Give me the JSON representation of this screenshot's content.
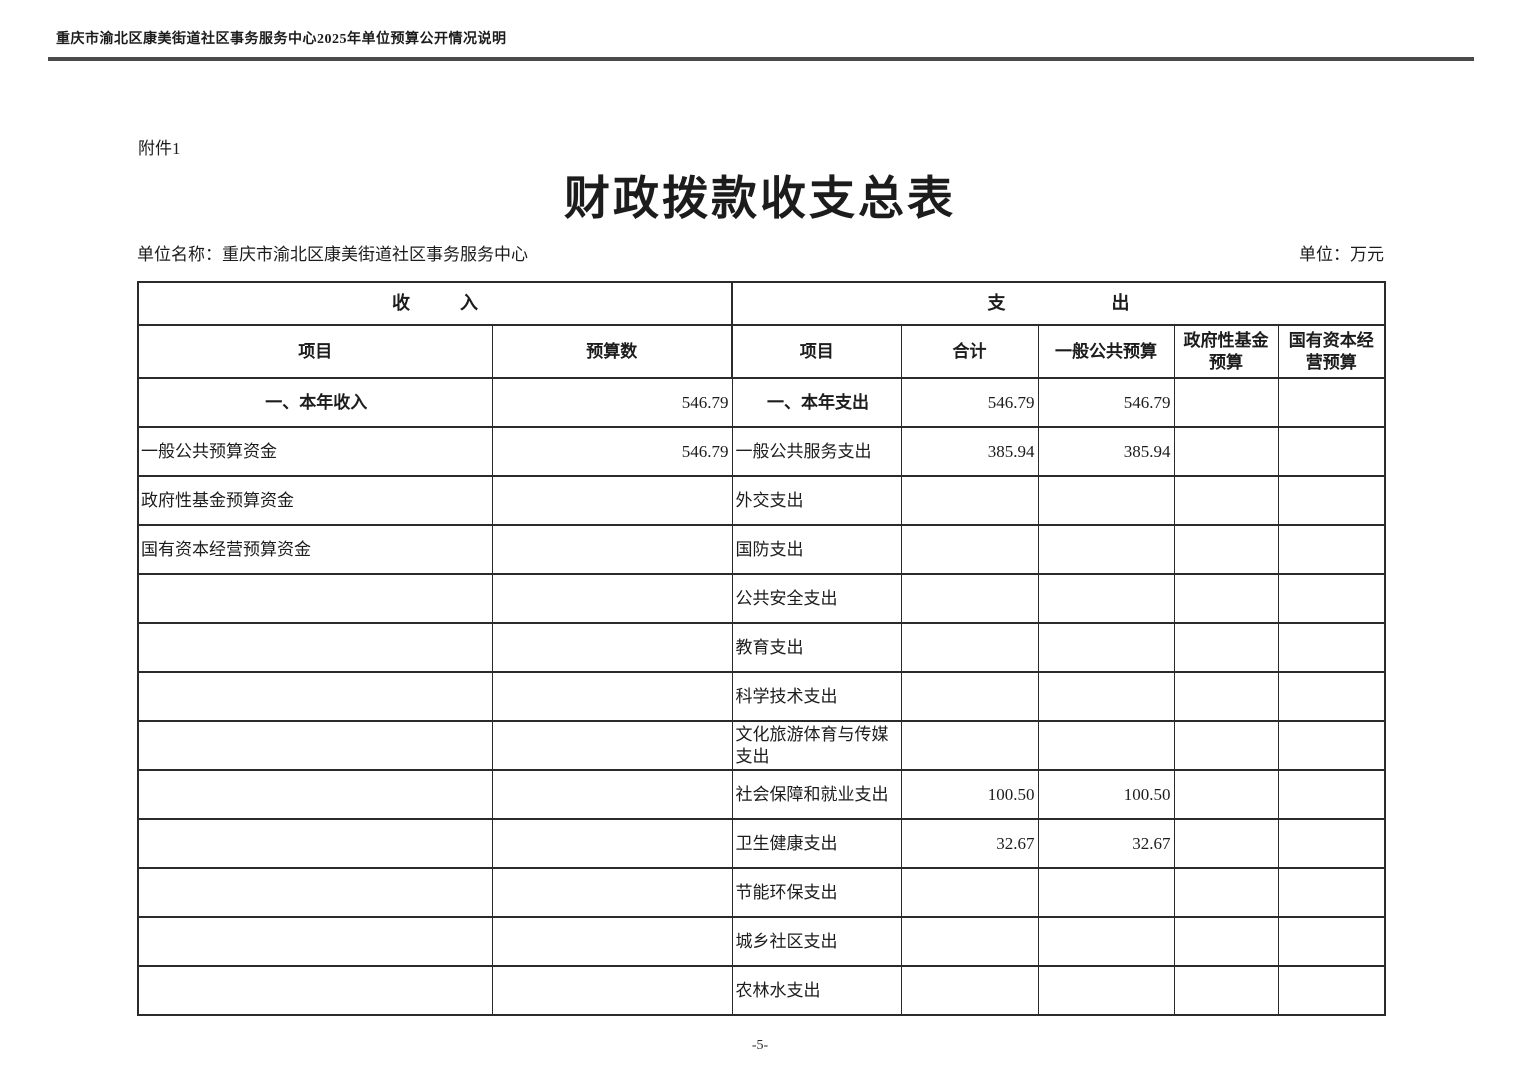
{
  "page": {
    "doc_header": "重庆市渝北区康美街道社区事务服务中心2025年单位预算公开情况说明",
    "attachment_label": "附件1",
    "title": "财政拨款收支总表",
    "unit_name": "单位名称：重庆市渝北区康美街道社区事务服务中心",
    "unit_measure": "单位：万元",
    "page_number": "-5-"
  },
  "table": {
    "section_income": {
      "left_char": "收",
      "right_char": "入"
    },
    "section_expense": {
      "left_char": "支",
      "right_char": "出"
    },
    "columns": {
      "income_item": "项目",
      "income_budget": "预算数",
      "expense_item": "项目",
      "total": "合计",
      "general_public": "一般公共预算",
      "gov_fund": "政府性基金预算",
      "state_capital": "国有资本经营预算"
    },
    "rows": [
      {
        "emphasis": true,
        "income_item": "一、本年收入",
        "income_budget": "546.79",
        "expense_item": "一、本年支出",
        "total": "546.79",
        "general_public": "546.79",
        "gov_fund": "",
        "state_capital": ""
      },
      {
        "emphasis": false,
        "income_item": "一般公共预算资金",
        "income_budget": "546.79",
        "expense_item": "一般公共服务支出",
        "total": "385.94",
        "general_public": "385.94",
        "gov_fund": "",
        "state_capital": ""
      },
      {
        "emphasis": false,
        "income_item": "政府性基金预算资金",
        "income_budget": "",
        "expense_item": "外交支出",
        "total": "",
        "general_public": "",
        "gov_fund": "",
        "state_capital": ""
      },
      {
        "emphasis": false,
        "income_item": "国有资本经营预算资金",
        "income_budget": "",
        "expense_item": "国防支出",
        "total": "",
        "general_public": "",
        "gov_fund": "",
        "state_capital": ""
      },
      {
        "emphasis": false,
        "income_item": "",
        "income_budget": "",
        "expense_item": "公共安全支出",
        "total": "",
        "general_public": "",
        "gov_fund": "",
        "state_capital": ""
      },
      {
        "emphasis": false,
        "income_item": "",
        "income_budget": "",
        "expense_item": "教育支出",
        "total": "",
        "general_public": "",
        "gov_fund": "",
        "state_capital": ""
      },
      {
        "emphasis": false,
        "income_item": "",
        "income_budget": "",
        "expense_item": "科学技术支出",
        "total": "",
        "general_public": "",
        "gov_fund": "",
        "state_capital": ""
      },
      {
        "emphasis": false,
        "income_item": "",
        "income_budget": "",
        "expense_item": "文化旅游体育与传媒支出",
        "total": "",
        "general_public": "",
        "gov_fund": "",
        "state_capital": ""
      },
      {
        "emphasis": false,
        "income_item": "",
        "income_budget": "",
        "expense_item": "社会保障和就业支出",
        "total": "100.50",
        "general_public": "100.50",
        "gov_fund": "",
        "state_capital": ""
      },
      {
        "emphasis": false,
        "income_item": "",
        "income_budget": "",
        "expense_item": "卫生健康支出",
        "total": "32.67",
        "general_public": "32.67",
        "gov_fund": "",
        "state_capital": ""
      },
      {
        "emphasis": false,
        "income_item": "",
        "income_budget": "",
        "expense_item": "节能环保支出",
        "total": "",
        "general_public": "",
        "gov_fund": "",
        "state_capital": ""
      },
      {
        "emphasis": false,
        "income_item": "",
        "income_budget": "",
        "expense_item": "城乡社区支出",
        "total": "",
        "general_public": "",
        "gov_fund": "",
        "state_capital": ""
      },
      {
        "emphasis": false,
        "income_item": "",
        "income_budget": "",
        "expense_item": "农林水支出",
        "total": "",
        "general_public": "",
        "gov_fund": "",
        "state_capital": ""
      }
    ]
  }
}
